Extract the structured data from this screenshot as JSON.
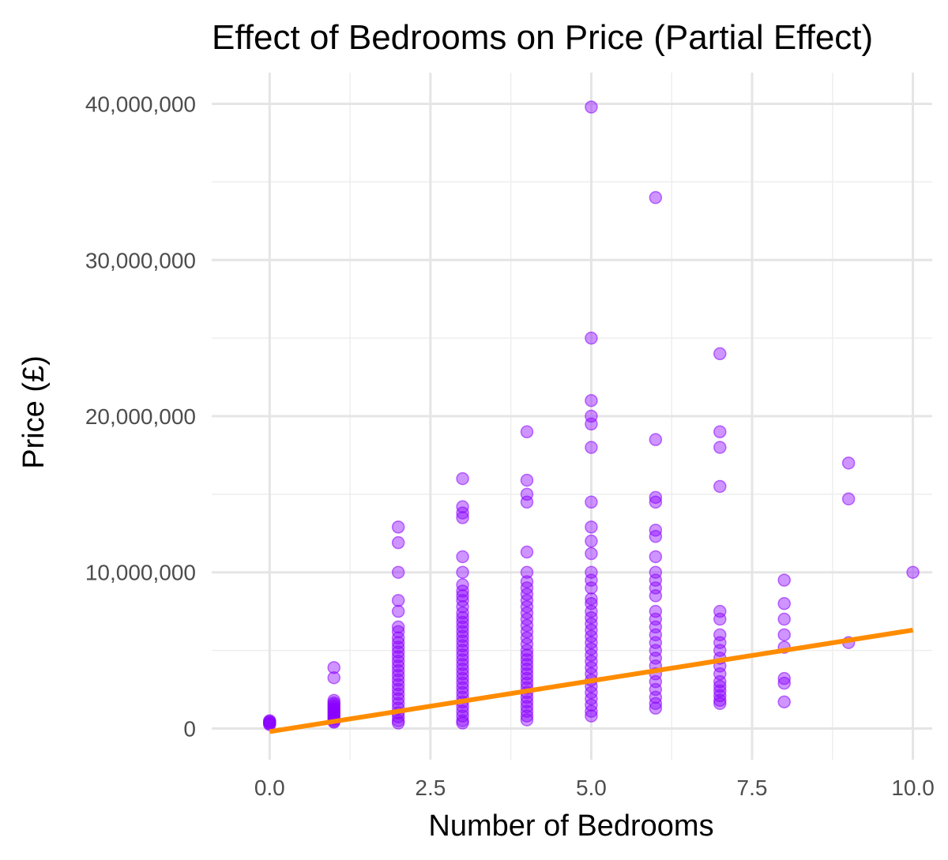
{
  "chart_data": {
    "type": "scatter",
    "title": "Effect of Bedrooms on Price (Partial Effect)",
    "xlabel": "Number of Bedrooms",
    "ylabel": "Price (£)",
    "xlim": [
      -0.9,
      10.3
    ],
    "ylim": [
      -2000000,
      42000000
    ],
    "x_ticks": [
      0,
      2.5,
      5,
      7.5,
      10
    ],
    "x_tick_labels": [
      "0.0",
      "2.5",
      "5.0",
      "7.5",
      "10.0"
    ],
    "x_minor_ticks": [
      1.25,
      3.75,
      6.25,
      8.75
    ],
    "y_ticks": [
      0,
      10000000,
      20000000,
      30000000,
      40000000
    ],
    "y_tick_labels": [
      "0",
      "10,000,000",
      "20,000,000",
      "30,000,000",
      "40,000,000"
    ],
    "y_minor_ticks": [
      5000000,
      15000000,
      25000000,
      35000000
    ],
    "grid": true,
    "legend": "none",
    "colors": {
      "points": "#8B00FF",
      "fit_line": "#FF8C00"
    },
    "fit_line": {
      "x": [
        0,
        10
      ],
      "y": [
        -200000,
        6300000
      ]
    },
    "series": [
      {
        "points": [
          {
            "bedrooms": 0,
            "prices": [
              500000,
              450000,
              400000,
              350000,
              300000,
              250000
            ]
          },
          {
            "bedrooms": 1,
            "prices": [
              3900000,
              3250000,
              1800000,
              1650000,
              1550000,
              1450000,
              1350000,
              1250000,
              1150000,
              1050000,
              950000,
              850000,
              750000,
              650000,
              550000,
              450000,
              400000
            ]
          },
          {
            "bedrooms": 2,
            "prices": [
              12900000,
              11900000,
              10000000,
              8200000,
              7500000,
              6500000,
              6200000,
              5800000,
              5500000,
              5200000,
              4900000,
              4600000,
              4300000,
              4000000,
              3700000,
              3400000,
              3100000,
              2800000,
              2500000,
              2200000,
              1900000,
              1600000,
              1300000,
              1000000,
              750000,
              500000,
              350000
            ]
          },
          {
            "bedrooms": 3,
            "prices": [
              16000000,
              14200000,
              13800000,
              13500000,
              11000000,
              10000000,
              9200000,
              8800000,
              8500000,
              8200000,
              7800000,
              7400000,
              7100000,
              6800000,
              6500000,
              6200000,
              5900000,
              5600000,
              5300000,
              5000000,
              4700000,
              4400000,
              4100000,
              3800000,
              3500000,
              3200000,
              2900000,
              2600000,
              2300000,
              2000000,
              1700000,
              1400000,
              1100000,
              800000,
              500000,
              350000
            ]
          },
          {
            "bedrooms": 4,
            "prices": [
              19000000,
              15900000,
              15000000,
              14500000,
              11300000,
              10000000,
              9400000,
              9000000,
              8600000,
              8200000,
              7800000,
              7400000,
              7000000,
              6600000,
              6200000,
              5800000,
              5400000,
              5000000,
              4700000,
              4400000,
              4100000,
              3800000,
              3500000,
              3200000,
              2900000,
              2600000,
              2300000,
              2000000,
              1700000,
              1400000,
              1100000,
              800000,
              550000
            ]
          },
          {
            "bedrooms": 5,
            "prices": [
              39800000,
              25000000,
              21000000,
              20000000,
              19500000,
              18000000,
              14500000,
              12900000,
              12000000,
              11200000,
              10000000,
              9500000,
              9000000,
              8300000,
              8000000,
              7500000,
              7100000,
              6700000,
              6300000,
              5900000,
              5500000,
              5100000,
              4700000,
              4300000,
              3900000,
              3500000,
              3100000,
              2700000,
              2300000,
              1900000,
              1500000,
              1100000,
              800000
            ]
          },
          {
            "bedrooms": 6,
            "prices": [
              34000000,
              18500000,
              14800000,
              14500000,
              12700000,
              12300000,
              11000000,
              10000000,
              9500000,
              9000000,
              8500000,
              7500000,
              7000000,
              6500000,
              6000000,
              5500000,
              5000000,
              4500000,
              4000000,
              3500000,
              3000000,
              2500000,
              2000000,
              1600000,
              1300000
            ]
          },
          {
            "bedrooms": 7,
            "prices": [
              24000000,
              19000000,
              18000000,
              15500000,
              7500000,
              7000000,
              6000000,
              5500000,
              5000000,
              4500000,
              4000000,
              3500000,
              3000000,
              2700000,
              2400000,
              2100000,
              1800000,
              1600000
            ]
          },
          {
            "bedrooms": 8,
            "prices": [
              9500000,
              8000000,
              7000000,
              6000000,
              5200000,
              3200000,
              2900000,
              1700000
            ]
          },
          {
            "bedrooms": 9,
            "prices": [
              17000000,
              14700000,
              5500000
            ]
          },
          {
            "bedrooms": 10,
            "prices": [
              10000000
            ]
          }
        ]
      }
    ]
  }
}
